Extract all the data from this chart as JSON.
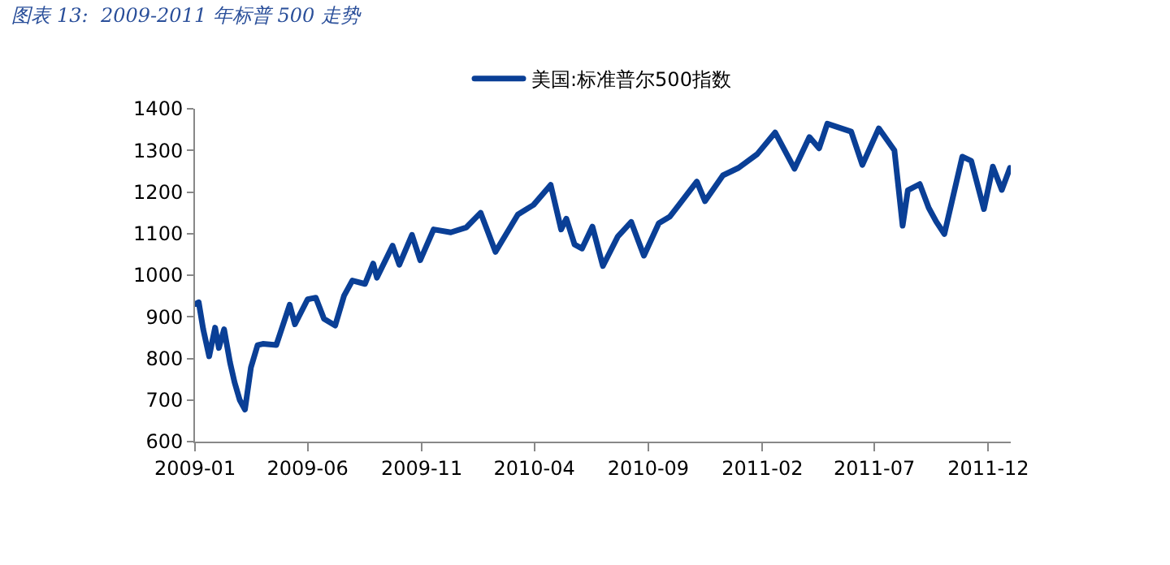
{
  "chart_data": {
    "type": "line",
    "title": "图表 13:  2009-2011 年标普 500 走势",
    "x": [
      "2009-01-02",
      "2009-01-06",
      "2009-01-12",
      "2009-01-20",
      "2009-01-28",
      "2009-02-02",
      "2009-02-09",
      "2009-02-17",
      "2009-02-23",
      "2009-03-02",
      "2009-03-09",
      "2009-03-17",
      "2009-03-26",
      "2009-04-02",
      "2009-04-20",
      "2009-05-08",
      "2009-05-15",
      "2009-06-01",
      "2009-06-12",
      "2009-06-23",
      "2009-07-08",
      "2009-07-20",
      "2009-07-31",
      "2009-08-17",
      "2009-08-28",
      "2009-09-02",
      "2009-09-23",
      "2009-10-02",
      "2009-10-19",
      "2009-10-30",
      "2009-11-17",
      "2009-12-10",
      "2009-12-31",
      "2010-01-19",
      "2010-02-08",
      "2010-03-10",
      "2010-03-31",
      "2010-04-23",
      "2010-05-07",
      "2010-05-14",
      "2010-05-25",
      "2010-06-04",
      "2010-06-18",
      "2010-07-02",
      "2010-07-22",
      "2010-08-09",
      "2010-08-26",
      "2010-09-15",
      "2010-09-30",
      "2010-11-05",
      "2010-11-16",
      "2010-12-10",
      "2010-12-31",
      "2011-01-25",
      "2011-02-18",
      "2011-03-16",
      "2011-04-05",
      "2011-04-18",
      "2011-04-29",
      "2011-05-31",
      "2011-06-15",
      "2011-07-07",
      "2011-07-28",
      "2011-08-08",
      "2011-08-15",
      "2011-08-31",
      "2011-09-12",
      "2011-09-22",
      "2011-10-03",
      "2011-10-27",
      "2011-11-08",
      "2011-11-25",
      "2011-12-07",
      "2011-12-19",
      "2011-12-30"
    ],
    "series": [
      {
        "name": "美国:标准普尔500指数",
        "color": "#0a3f96",
        "values": [
          931,
          935,
          870,
          805,
          874,
          825,
          870,
          790,
          743,
          700,
          677,
          778,
          832,
          835,
          832,
          929,
          882,
          942,
          946,
          895,
          879,
          951,
          987,
          979,
          1028,
          994,
          1071,
          1025,
          1097,
          1036,
          1110,
          1103,
          1115,
          1150,
          1056,
          1146,
          1169,
          1217,
          1110,
          1136,
          1074,
          1064,
          1117,
          1022,
          1093,
          1128,
          1047,
          1125,
          1141,
          1225,
          1178,
          1240,
          1258,
          1291,
          1343,
          1256,
          1332,
          1305,
          1364,
          1345,
          1265,
          1353,
          1300,
          1119,
          1204,
          1219,
          1162,
          1129,
          1099,
          1285,
          1275,
          1159,
          1261,
          1205,
          1258
        ]
      }
    ],
    "xlim": [
      "2009-01-01",
      "2011-12-31"
    ],
    "xticks": [
      "2009-01",
      "2009-06",
      "2009-11",
      "2010-04",
      "2010-09",
      "2011-02",
      "2011-07",
      "2011-12"
    ],
    "ylim": [
      600,
      1400
    ],
    "yticks": [
      600,
      700,
      800,
      900,
      1000,
      1100,
      1200,
      1300,
      1400
    ],
    "legend": "top",
    "marker": "none",
    "line_style": "solid"
  }
}
